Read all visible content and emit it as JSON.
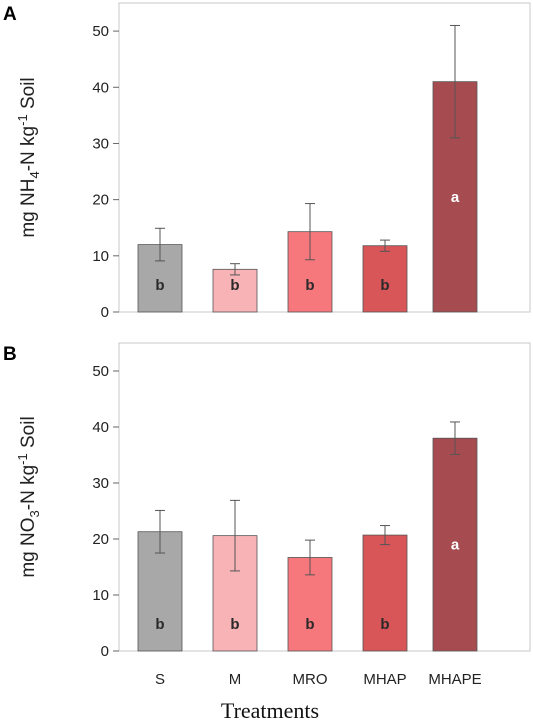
{
  "chart_data": [
    {
      "panel": "A",
      "type": "bar",
      "ylabel_pre": "mg NH",
      "ylabel_sub": "4",
      "ylabel_mid": "-N kg",
      "ylabel_sup": "-1",
      "ylabel_post": " Soil",
      "ylim": [
        0,
        55
      ],
      "yticks": [
        0,
        10,
        20,
        30,
        40,
        50
      ],
      "categories": [
        "S",
        "M",
        "MRO",
        "MHAP",
        "MHAPE"
      ],
      "values": [
        12.0,
        7.6,
        14.3,
        11.8,
        41.0
      ],
      "errors": [
        2.9,
        1.0,
        5.0,
        1.0,
        10.0
      ],
      "letters": [
        "b",
        "b",
        "b",
        "b",
        "a"
      ],
      "colors": [
        "#a8a8a8",
        "#f7b3b6",
        "#f7787c",
        "#d85558",
        "#a64b50"
      ]
    },
    {
      "panel": "B",
      "type": "bar",
      "ylabel_pre": "mg NO",
      "ylabel_sub": "3",
      "ylabel_mid": "-N kg",
      "ylabel_sup": "-1",
      "ylabel_post": " Soil",
      "ylim": [
        0,
        55
      ],
      "yticks": [
        0,
        10,
        20,
        30,
        40,
        50
      ],
      "categories": [
        "S",
        "M",
        "MRO",
        "MHAP",
        "MHAPE"
      ],
      "values": [
        21.3,
        20.6,
        16.7,
        20.7,
        38.0
      ],
      "errors": [
        3.8,
        6.3,
        3.1,
        1.7,
        2.9
      ],
      "letters": [
        "b",
        "b",
        "b",
        "b",
        "a"
      ],
      "colors": [
        "#a8a8a8",
        "#f7b3b6",
        "#f7787c",
        "#d85558",
        "#a64b50"
      ]
    }
  ],
  "xlabel": "Treatments"
}
